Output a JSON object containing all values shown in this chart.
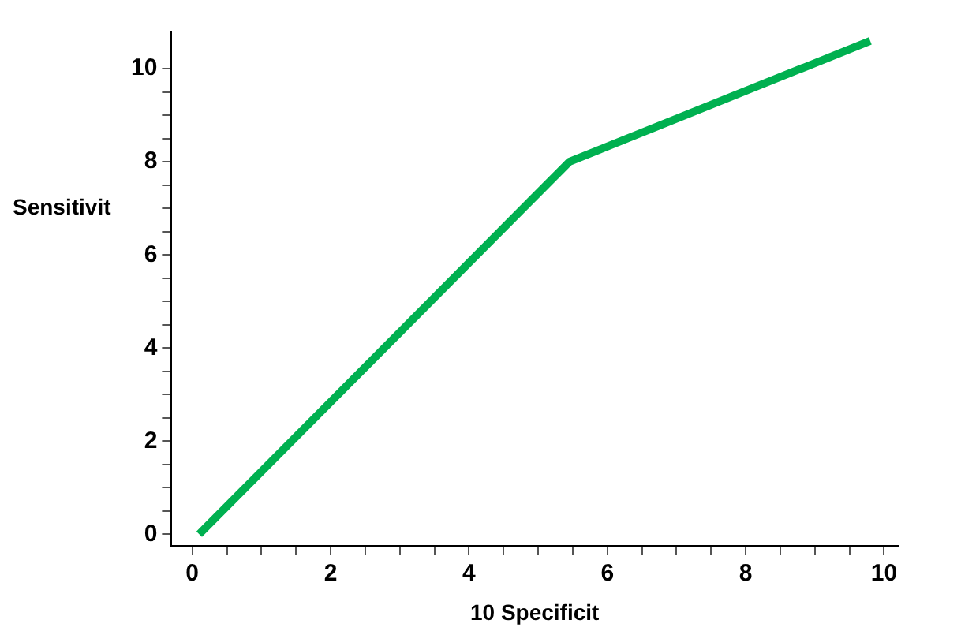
{
  "chart_data": {
    "type": "line",
    "xlabel": "10 Specificit",
    "ylabel": "Sensitivit",
    "x": [
      0.1,
      5.45,
      9.8
    ],
    "series": [
      {
        "color": "#00b050",
        "values": [
          0,
          8,
          10.6
        ]
      }
    ],
    "xlim": [
      -0.3,
      10.2
    ],
    "ylim": [
      -0.25,
      10.8
    ],
    "xticks": [
      0,
      {
        "value": 0.5,
        "label": null
      },
      {
        "value": 1,
        "label": null
      },
      {
        "value": 1.5,
        "label": null
      },
      2,
      {
        "value": 2.5,
        "label": null
      },
      {
        "value": 3,
        "label": null
      },
      {
        "value": 3.5,
        "label": null
      },
      4,
      {
        "value": 4.5,
        "label": null
      },
      {
        "value": 5,
        "label": null
      },
      {
        "value": 5.5,
        "label": null
      },
      6,
      {
        "value": 6.5,
        "label": null
      },
      {
        "value": 7,
        "label": null
      },
      {
        "value": 7.5,
        "label": null
      },
      8,
      {
        "value": 8.5,
        "label": null
      },
      {
        "value": 9,
        "label": null
      },
      {
        "value": 9.5,
        "label": null
      },
      10
    ],
    "yticks": [
      0,
      {
        "value": 0.5,
        "label": null
      },
      {
        "value": 1,
        "label": null
      },
      {
        "value": 1.5,
        "label": null
      },
      2,
      {
        "value": 2.5,
        "label": null
      },
      {
        "value": 3,
        "label": null
      },
      {
        "value": 3.5,
        "label": null
      },
      4,
      {
        "value": 4.5,
        "label": null
      },
      {
        "value": 5,
        "label": null
      },
      {
        "value": 5.5,
        "label": null
      },
      6,
      {
        "value": 6.5,
        "label": null
      },
      {
        "value": 7,
        "label": null
      },
      {
        "value": 7.5,
        "label": null
      },
      8,
      {
        "value": 8.5,
        "label": null
      },
      {
        "value": 9,
        "label": null
      },
      {
        "value": 9.5,
        "label": null
      },
      10
    ],
    "grid": false,
    "legend": false,
    "marker": "none",
    "line_style": "solid"
  }
}
